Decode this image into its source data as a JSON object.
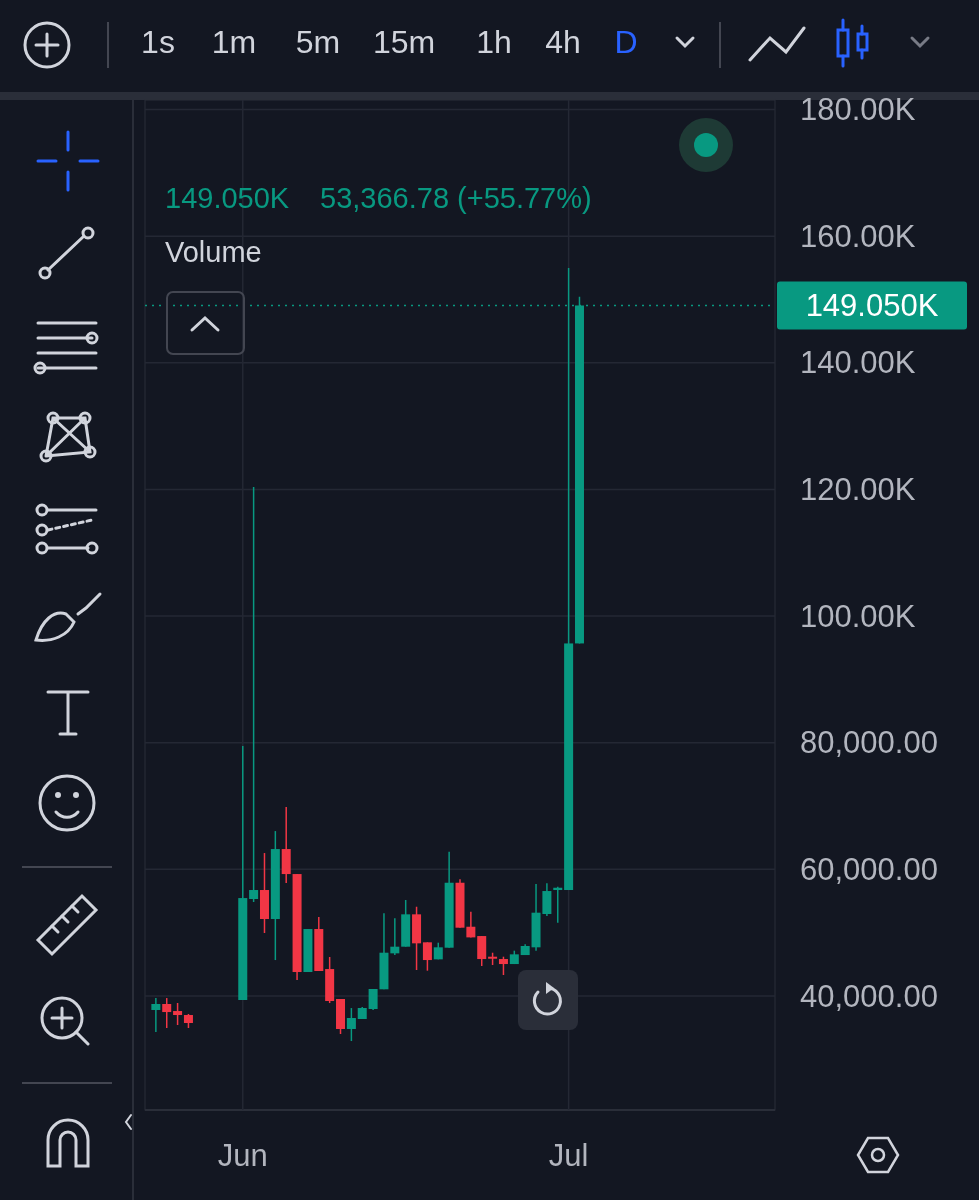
{
  "chart_data": {
    "type": "candlestick",
    "x": [
      "--05-24",
      "--05-25",
      "--05-26",
      "--05-27",
      "--06-01",
      "--06-02",
      "--06-03",
      "--06-04",
      "--06-05",
      "--06-06",
      "--06-07",
      "--06-08",
      "--06-09",
      "--06-10",
      "--06-11",
      "--06-12",
      "--06-13",
      "--06-14",
      "--06-15",
      "--06-16",
      "--06-17",
      "--06-18",
      "--06-19",
      "--06-20",
      "--06-21",
      "--06-22",
      "--06-23",
      "--06-24",
      "--06-25",
      "--06-26",
      "--06-27",
      "--06-28",
      "--06-29",
      "--06-30",
      "--07-01",
      "--07-02"
    ],
    "ohlc": [
      [
        37790,
        39680,
        34320,
        38740
      ],
      [
        38740,
        39680,
        34950,
        37470
      ],
      [
        37630,
        38900,
        35420,
        37000
      ],
      [
        37000,
        37160,
        34950,
        35740
      ],
      [
        39370,
        79470,
        39370,
        55470
      ],
      [
        55320,
        120370,
        54840,
        56740
      ],
      [
        56740,
        62580,
        49950,
        52160
      ],
      [
        52160,
        66050,
        45680,
        63210
      ],
      [
        63210,
        69840,
        57840,
        59260
      ],
      [
        59260,
        59260,
        42530,
        43790
      ],
      [
        43790,
        50580,
        43790,
        50580
      ],
      [
        50580,
        52470,
        43950,
        43950
      ],
      [
        44260,
        46160,
        38890,
        39210
      ],
      [
        39530,
        39530,
        34000,
        34790
      ],
      [
        34790,
        38100,
        32890,
        36530
      ],
      [
        36370,
        38260,
        36370,
        38110
      ],
      [
        37950,
        41110,
        37790,
        41110
      ],
      [
        41060,
        53060,
        41060,
        46840
      ],
      [
        46740,
        52270,
        46470,
        47790
      ],
      [
        47790,
        55160,
        47790,
        52900
      ],
      [
        52900,
        54100,
        44110,
        48320
      ],
      [
        48480,
        48480,
        44000,
        45680
      ],
      [
        45790,
        48420,
        45790,
        47690
      ],
      [
        47630,
        62790,
        47630,
        57890
      ],
      [
        57890,
        58430,
        50790,
        50790
      ],
      [
        50940,
        53310,
        49260,
        49260
      ],
      [
        49470,
        49470,
        44740,
        45840
      ],
      [
        46210,
        46840,
        44900,
        45890
      ],
      [
        45840,
        46210,
        43320,
        45050
      ],
      [
        45050,
        47160,
        45050,
        46580
      ],
      [
        46470,
        48160,
        46470,
        47900
      ],
      [
        47690,
        57690,
        47160,
        53160
      ],
      [
        52950,
        57790,
        52630,
        56580
      ],
      [
        56740,
        57260,
        51580,
        57100
      ],
      [
        56740,
        154950,
        56740,
        95680
      ],
      [
        95680,
        150420,
        95680,
        149050
      ]
    ],
    "colors": [
      "#089981",
      "#f23645",
      "#f23645",
      "#f23645",
      "#089981",
      "#089981",
      "#f23645",
      "#089981",
      "#f23645",
      "#f23645",
      "#089981",
      "#f23645",
      "#f23645",
      "#f23645",
      "#089981",
      "#089981",
      "#089981",
      "#089981",
      "#089981",
      "#089981",
      "#f23645",
      "#f23645",
      "#089981",
      "#089981",
      "#f23645",
      "#f23645",
      "#f23645",
      "#f23645",
      "#f23645",
      "#089981",
      "#089981",
      "#089981",
      "#089981",
      "#089981",
      "#089981",
      "#089981"
    ],
    "xlim": [
      "--05-23",
      "--07-20"
    ],
    "xticks": [
      {
        "value": "--06-01",
        "label": "Jun"
      },
      {
        "value": "--07-01",
        "label": "Jul"
      }
    ],
    "ylim": [
      22000,
      181500
    ],
    "yticks": [
      {
        "value": 40000,
        "label": "40,000.00"
      },
      {
        "value": 60000,
        "label": "60,000.00"
      },
      {
        "value": 80000,
        "label": "80,000.00"
      },
      {
        "value": 100000,
        "label": "100.00K"
      },
      {
        "value": 120000,
        "label": "120.00K"
      },
      {
        "value": 140000,
        "label": "140.00K"
      },
      {
        "value": 160000,
        "label": "160.00K"
      },
      {
        "value": 180000,
        "label": "180.00K"
      }
    ],
    "grid": true,
    "ref_lines": [
      {
        "axis": "y",
        "value": 149050,
        "label": "149.050K",
        "color": "#089981",
        "line_style": "dotted"
      }
    ],
    "annotations": [
      "149.050K",
      "53,366.78 (+55.77%)",
      "Volume",
      "1s",
      "1m",
      "5m",
      "15m",
      "1h",
      "4h",
      "D"
    ]
  }
}
